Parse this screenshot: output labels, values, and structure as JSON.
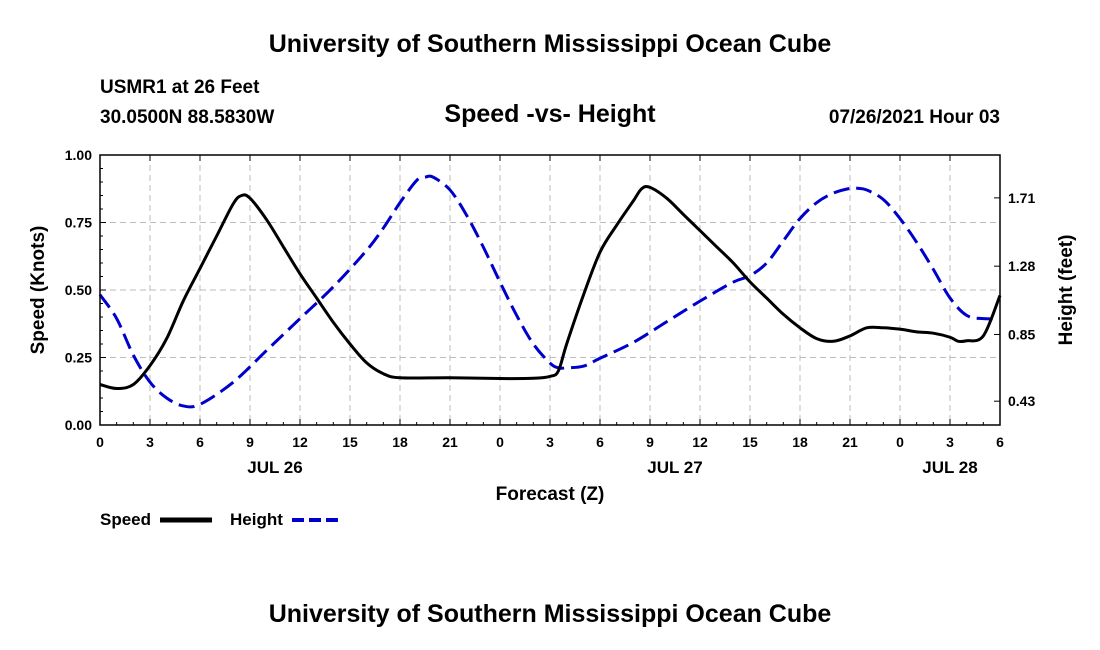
{
  "header": {
    "title": "University of Southern Mississippi Ocean Cube",
    "station": "USMR1 at 26 Feet",
    "coords": "30.0500N  88.5830W",
    "chart_title": "Speed -vs- Height",
    "datetime": "07/26/2021 Hour 03"
  },
  "footer": {
    "title": "University of Southern Mississippi Ocean Cube"
  },
  "legend": {
    "speed_label": "Speed",
    "height_label": "Height"
  },
  "colors": {
    "speed": "#000000",
    "height": "#0000cc",
    "grid": "#bbbbbb"
  },
  "chart_data": {
    "type": "line",
    "title": "Speed -vs- Height",
    "xlabel": "Forecast (Z)",
    "ylabel": "Speed (Knots)",
    "y2label": "Height (feet)",
    "x_range_hours": [
      0,
      54
    ],
    "x_tick_hours": [
      0,
      3,
      6,
      9,
      12,
      15,
      18,
      21,
      24,
      27,
      30,
      33,
      36,
      39,
      42,
      45,
      48,
      51,
      54
    ],
    "x_tick_labels": [
      "0",
      "3",
      "6",
      "9",
      "12",
      "15",
      "18",
      "21",
      "0",
      "3",
      "6",
      "9",
      "12",
      "15",
      "18",
      "21",
      "0",
      "3",
      "6"
    ],
    "date_labels": [
      {
        "hour": 10.5,
        "label": "JUL 26"
      },
      {
        "hour": 34.5,
        "label": "JUL 27"
      },
      {
        "hour": 51,
        "label": "JUL 28"
      }
    ],
    "ylim": [
      0,
      1
    ],
    "y_ticks": [
      0,
      0.25,
      0.5,
      0.75,
      1.0
    ],
    "y_tick_labels": [
      "0.00",
      "0.25",
      "0.50",
      "0.75",
      "1.00"
    ],
    "y2lim": [
      0.28,
      1.98
    ],
    "y2_ticks": [
      0.43,
      0.85,
      1.28,
      1.71
    ],
    "y2_tick_labels": [
      "0.43",
      "0.85",
      "1.28",
      "1.71"
    ],
    "grid": true,
    "series": [
      {
        "name": "Speed",
        "axis": "left",
        "style": "solid",
        "x": [
          0,
          1,
          2,
          3,
          4,
          5,
          6,
          7,
          8,
          8.5,
          9,
          10,
          11,
          12,
          13,
          14,
          15,
          16,
          17,
          18,
          21,
          24,
          26,
          27,
          27.5,
          28,
          29,
          30,
          31,
          32,
          32.5,
          33,
          34,
          35,
          36,
          37,
          38,
          39,
          40,
          41,
          42,
          43,
          44,
          45,
          46,
          47,
          48,
          49,
          50,
          51,
          51.5,
          52,
          53,
          54
        ],
        "values": [
          0.15,
          0.135,
          0.15,
          0.22,
          0.32,
          0.46,
          0.58,
          0.7,
          0.82,
          0.85,
          0.84,
          0.76,
          0.66,
          0.56,
          0.47,
          0.38,
          0.3,
          0.23,
          0.19,
          0.175,
          0.175,
          0.172,
          0.173,
          0.18,
          0.2,
          0.3,
          0.48,
          0.64,
          0.74,
          0.83,
          0.875,
          0.88,
          0.84,
          0.78,
          0.72,
          0.66,
          0.6,
          0.53,
          0.47,
          0.41,
          0.36,
          0.32,
          0.31,
          0.33,
          0.36,
          0.36,
          0.355,
          0.345,
          0.34,
          0.325,
          0.31,
          0.312,
          0.33,
          0.48
        ]
      },
      {
        "name": "Height",
        "axis": "right",
        "style": "dashed",
        "x": [
          0,
          1,
          2,
          3,
          4,
          5,
          6,
          8,
          10,
          12,
          14,
          16,
          17,
          18,
          19,
          19.5,
          20,
          21,
          22,
          23,
          24,
          25,
          26,
          27,
          27.5,
          28,
          29,
          30,
          32,
          34,
          36,
          38,
          39,
          40,
          41,
          42,
          43,
          44,
          45,
          45.5,
          46,
          47,
          48,
          49,
          50,
          51,
          52,
          53,
          54
        ],
        "values": [
          1.1,
          0.95,
          0.72,
          0.55,
          0.45,
          0.4,
          0.41,
          0.55,
          0.75,
          0.95,
          1.15,
          1.38,
          1.52,
          1.68,
          1.82,
          1.84,
          1.84,
          1.76,
          1.6,
          1.4,
          1.18,
          0.97,
          0.79,
          0.67,
          0.64,
          0.64,
          0.65,
          0.7,
          0.8,
          0.93,
          1.06,
          1.18,
          1.22,
          1.3,
          1.44,
          1.58,
          1.68,
          1.74,
          1.77,
          1.77,
          1.76,
          1.7,
          1.58,
          1.43,
          1.26,
          1.08,
          0.97,
          0.95,
          0.95
        ]
      }
    ]
  }
}
